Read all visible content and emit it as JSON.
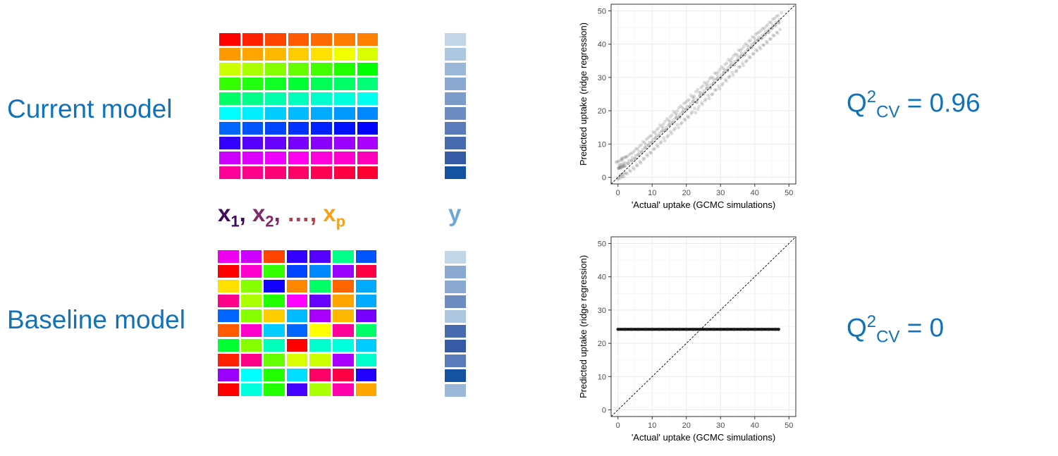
{
  "labels": {
    "current_model": "Current model",
    "baseline_model": "Baseline model"
  },
  "variables": {
    "x1_base": "x",
    "x1_sub": "1",
    "sep1": ",",
    "x2_base": "x",
    "x2_sub": "2",
    "sep2": ",",
    "ellipsis": "…,",
    "xp_base": "x",
    "xp_sub": "p",
    "y": "y",
    "colors": {
      "x1": "#3d0a5c",
      "x2": "#7e2b6e",
      "ellipsis": "#b93a4a",
      "xp": "#f5a21b",
      "y": "#6fa8d8"
    }
  },
  "metrics": {
    "current": {
      "q": "Q",
      "sup": "2",
      "sub": "CV",
      "rest": " = 0.96"
    },
    "baseline": {
      "q": "Q",
      "sup": "2",
      "sub": "CV",
      "rest": " = 0"
    }
  },
  "current_matrix": [
    [
      "#ff0000",
      "#ff2200",
      "#ff4400",
      "#ff5a00",
      "#ff6a00",
      "#ff7a00",
      "#ff8000"
    ],
    [
      "#ff9900",
      "#ffa500",
      "#ffb800",
      "#ffcc00",
      "#ffe000",
      "#f0ff00",
      "#d8ff00"
    ],
    [
      "#ccff00",
      "#aaff00",
      "#88ff00",
      "#66ff00",
      "#44ff00",
      "#22ff00",
      "#00ff00"
    ],
    [
      "#33ff00",
      "#22ff11",
      "#11ff22",
      "#00ff33",
      "#00ff55",
      "#00ff66",
      "#00ff77"
    ],
    [
      "#00ff66",
      "#00ff88",
      "#00ffaa",
      "#00ffbb",
      "#00ffcc",
      "#00ffdd",
      "#00ffee"
    ],
    [
      "#00ffff",
      "#00eeff",
      "#00ccff",
      "#00bbff",
      "#00aaff",
      "#0099ff",
      "#0088ff"
    ],
    [
      "#0066ff",
      "#0055ff",
      "#0044ff",
      "#0033ff",
      "#0022ff",
      "#0011ff",
      "#0000ff"
    ],
    [
      "#3300ff",
      "#5500ff",
      "#6600ff",
      "#7700ff",
      "#8800ff",
      "#9900ff",
      "#aa00ff"
    ],
    [
      "#cc00ff",
      "#dd00ff",
      "#ee00ff",
      "#ff00ee",
      "#ff00dd",
      "#ff00cc",
      "#ff00bb"
    ],
    [
      "#ff0099",
      "#ff0088",
      "#ff0077",
      "#ff0066",
      "#ff0055",
      "#ff0044",
      "#ff0033"
    ]
  ],
  "current_y": [
    "#c2d6e8",
    "#adc7e0",
    "#9bb8d8",
    "#8aa8d0",
    "#7b9bc9",
    "#6b8bc1",
    "#5a7bb9",
    "#486aae",
    "#365aa6",
    "#1552a0"
  ],
  "baseline_matrix": [
    [
      "#ee00ee",
      "#cc00ff",
      "#ff4400",
      "#3300ff",
      "#5500ff",
      "#00ff88",
      "#0055ff"
    ],
    [
      "#ff0000",
      "#ff00cc",
      "#33ff00",
      "#0044ff",
      "#0088ff",
      "#9900ff",
      "#ff0044"
    ],
    [
      "#ffe000",
      "#88ff00",
      "#1100ff",
      "#ff8800",
      "#00ff66",
      "#ff6600",
      "#00aaff"
    ],
    [
      "#ff0088",
      "#aaff00",
      "#22ff00",
      "#ff00ff",
      "#6600ff",
      "#ffa500",
      "#00aaff"
    ],
    [
      "#0066ff",
      "#88ff00",
      "#ffcc00",
      "#00bbff",
      "#aa00ff",
      "#ffb800",
      "#7700ff"
    ],
    [
      "#ff5a00",
      "#ff00cc",
      "#00ccff",
      "#0066ff",
      "#ffff00",
      "#ff0099",
      "#00ff66"
    ],
    [
      "#00ff33",
      "#88ff00",
      "#00ffbb",
      "#ff0000",
      "#00ffcc",
      "#00ffdd",
      "#00ccff"
    ],
    [
      "#ff2200",
      "#ff0088",
      "#66ff00",
      "#d8ff00",
      "#ccff00",
      "#aa00ff",
      "#00ffcc"
    ],
    [
      "#9900ff",
      "#00ffff",
      "#22ff00",
      "#00ddff",
      "#ff0066",
      "#ff0044",
      "#2200ff"
    ],
    [
      "#ff0000",
      "#00ffdd",
      "#22ff00",
      "#4400ff",
      "#aaff00",
      "#ff00aa",
      "#ffa500"
    ]
  ],
  "baseline_y": [
    "#c2d6e8",
    "#8aa8d0",
    "#8aa8d0",
    "#6b8bc1",
    "#adc7e0",
    "#486aae",
    "#365aa6",
    "#5a7bb9",
    "#1552a0",
    "#9bb8d8"
  ],
  "chart_data": [
    {
      "type": "scatter",
      "xlabel": "'Actual' uptake (GCMC simulations)",
      "ylabel": "Predicted uptake (ridge regression)",
      "xlim": [
        -2,
        52
      ],
      "ylim": [
        -2,
        52
      ],
      "xticks": [
        0,
        10,
        20,
        30,
        40,
        50
      ],
      "yticks": [
        0,
        10,
        20,
        30,
        40,
        50
      ],
      "grid": true,
      "reference_line": "y = x (dashed)",
      "points_summary": "dense cloud along y = x from 0 to ~47, spread about ±4",
      "x": [
        0.2,
        0.5,
        1,
        1.5,
        2,
        3,
        4,
        5,
        6,
        7,
        8,
        9,
        10,
        11,
        12,
        13,
        14,
        15,
        16,
        17,
        18,
        19,
        20,
        21,
        22,
        23,
        24,
        25,
        26,
        27,
        28,
        29,
        30,
        31,
        32,
        33,
        34,
        35,
        36,
        37,
        38,
        39,
        40,
        41,
        42,
        43,
        44,
        45,
        46,
        47
      ],
      "y": [
        2.7,
        2.9,
        3.0,
        3.3,
        3.4,
        4.2,
        5.0,
        5.6,
        6.8,
        7.5,
        8.9,
        9.6,
        10.5,
        11.8,
        12.4,
        13.9,
        14.2,
        15.8,
        16.3,
        17.9,
        18.1,
        19.6,
        20.4,
        21.2,
        22.8,
        22.6,
        24.5,
        25.1,
        26.7,
        26.9,
        28.3,
        29.5,
        29.8,
        31.4,
        32.1,
        33.6,
        33.9,
        35.2,
        36.4,
        36.8,
        38.3,
        39.1,
        40.4,
        41.2,
        41.8,
        42.9,
        43.6,
        44.8,
        45.7,
        46.5
      ]
    },
    {
      "type": "scatter",
      "xlabel": "'Actual' uptake (GCMC simulations)",
      "ylabel": "Predicted uptake (ridge regression)",
      "xlim": [
        -2,
        52
      ],
      "ylim": [
        -2,
        52
      ],
      "xticks": [
        0,
        10,
        20,
        30,
        40,
        50
      ],
      "yticks": [
        0,
        10,
        20,
        30,
        40,
        50
      ],
      "grid": true,
      "reference_line": "y = x (dashed)",
      "points_summary": "all predictions constant at ~24.2 for x from 0 to ~47",
      "x": [
        0,
        2,
        4,
        6,
        8,
        10,
        12,
        14,
        16,
        18,
        20,
        22,
        24,
        26,
        28,
        30,
        32,
        34,
        36,
        38,
        40,
        42,
        44,
        46,
        47
      ],
      "y": [
        24.2,
        24.2,
        24.2,
        24.2,
        24.2,
        24.2,
        24.2,
        24.2,
        24.2,
        24.2,
        24.2,
        24.2,
        24.2,
        24.2,
        24.2,
        24.2,
        24.2,
        24.2,
        24.2,
        24.2,
        24.2,
        24.2,
        24.2,
        24.2,
        24.2
      ]
    }
  ]
}
